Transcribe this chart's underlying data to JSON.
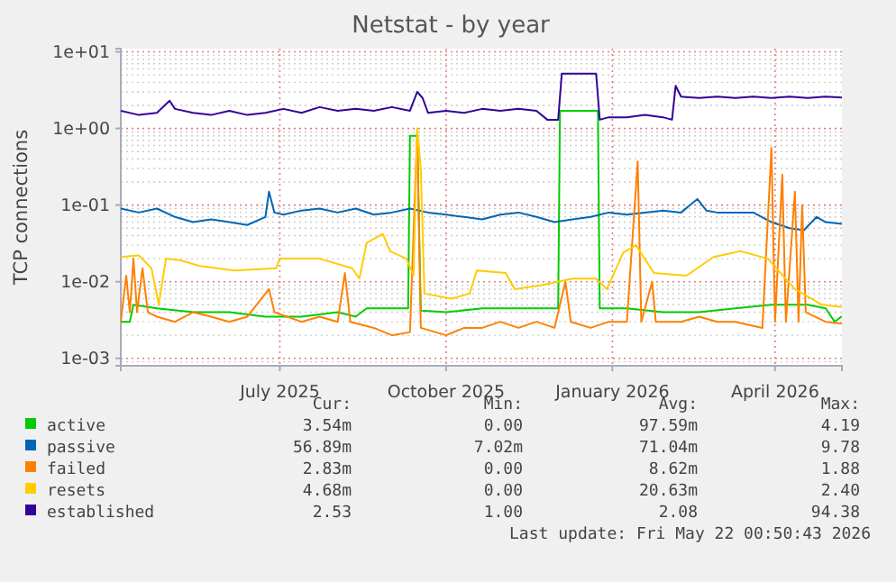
{
  "chart_data": {
    "type": "line",
    "title": "Netstat - by year",
    "ylabel": "TCP connections",
    "log": "y",
    "grid": true,
    "legend": "bottom",
    "marker": "none",
    "line_style": "solid",
    "xlim": [
      "2025-04-18",
      "2026-05-22"
    ],
    "xticks": [
      {
        "value": "2025-07-15",
        "label": "July 2025"
      },
      {
        "value": "2025-10-15",
        "label": "October 2025"
      },
      {
        "value": "2026-01-15",
        "label": "January 2026"
      },
      {
        "value": "2026-04-15",
        "label": "April 2026"
      }
    ],
    "ylim": [
      0.0008,
      11
    ],
    "yticks": [
      {
        "value": 0.001,
        "label": "1e-03"
      },
      {
        "value": 0.01,
        "label": "1e-02"
      },
      {
        "value": 0.1,
        "label": "1e-01"
      },
      {
        "value": 1,
        "label": "1e+00"
      },
      {
        "value": 10,
        "label": "1e+01"
      }
    ],
    "annotations": [
      "Cur:",
      "Min:",
      "Avg:",
      "Max:",
      "3.54m",
      "0.00",
      "97.59m",
      "4.19",
      "56.89m",
      "7.02m",
      "71.04m",
      "9.78",
      "2.83m",
      "0.00",
      "8.62m",
      "1.88",
      "4.68m",
      "0.00",
      "20.63m",
      "2.40",
      "2.53",
      "1.00",
      "2.08",
      "94.38",
      "Last update: Fri May 22 00:50:43 2026"
    ],
    "series": [
      {
        "name": "active",
        "color": "#00cc00",
        "x": [
          "2025-04-18",
          "2025-04-23",
          "2025-04-25",
          "2025-05-08",
          "2025-05-28",
          "2025-06-17",
          "2025-07-07",
          "2025-07-27",
          "2025-08-16",
          "2025-08-26",
          "2025-09-01",
          "2025-09-20",
          "2025-09-24",
          "2025-09-25",
          "2025-09-29",
          "2025-10-01",
          "2025-10-15",
          "2025-11-04",
          "2025-11-24",
          "2025-12-14",
          "2025-12-16",
          "2025-12-17",
          "2026-01-07",
          "2026-01-08",
          "2026-01-23",
          "2026-02-12",
          "2026-03-04",
          "2026-03-24",
          "2026-04-13",
          "2026-05-03",
          "2026-05-13",
          "2026-05-18",
          "2026-05-22"
        ],
        "values": [
          0.003,
          0.003,
          0.005,
          0.0045,
          0.004,
          0.004,
          0.0035,
          0.0035,
          0.004,
          0.0035,
          0.0045,
          0.0045,
          0.0045,
          0.8,
          0.8,
          0.0042,
          0.004,
          0.0045,
          0.0045,
          0.0045,
          0.0045,
          1.7,
          1.7,
          0.0045,
          0.0045,
          0.004,
          0.004,
          0.0045,
          0.005,
          0.005,
          0.0045,
          0.003,
          0.00354
        ]
      },
      {
        "name": "passive",
        "color": "#0066b3",
        "x": [
          "2025-04-18",
          "2025-04-28",
          "2025-05-08",
          "2025-05-18",
          "2025-05-28",
          "2025-06-07",
          "2025-06-17",
          "2025-06-27",
          "2025-07-07",
          "2025-07-09",
          "2025-07-12",
          "2025-07-17",
          "2025-07-27",
          "2025-08-06",
          "2025-08-16",
          "2025-08-26",
          "2025-09-05",
          "2025-09-15",
          "2025-09-25",
          "2025-10-05",
          "2025-10-15",
          "2025-10-25",
          "2025-11-04",
          "2025-11-14",
          "2025-11-24",
          "2025-12-04",
          "2025-12-14",
          "2025-12-24",
          "2026-01-03",
          "2026-01-13",
          "2026-01-23",
          "2026-02-02",
          "2026-02-12",
          "2026-02-22",
          "2026-03-03",
          "2026-03-08",
          "2026-03-14",
          "2026-03-24",
          "2026-04-03",
          "2026-04-13",
          "2026-04-23",
          "2026-05-01",
          "2026-05-08",
          "2026-05-13",
          "2026-05-22"
        ],
        "values": [
          0.09,
          0.08,
          0.09,
          0.07,
          0.06,
          0.065,
          0.06,
          0.055,
          0.07,
          0.15,
          0.08,
          0.075,
          0.085,
          0.09,
          0.08,
          0.09,
          0.075,
          0.08,
          0.09,
          0.08,
          0.075,
          0.07,
          0.065,
          0.075,
          0.08,
          0.07,
          0.06,
          0.065,
          0.07,
          0.08,
          0.075,
          0.08,
          0.085,
          0.08,
          0.12,
          0.085,
          0.08,
          0.08,
          0.08,
          0.06,
          0.05,
          0.047,
          0.07,
          0.06,
          0.057
        ]
      },
      {
        "name": "failed",
        "color": "#ff8000",
        "x": [
          "2025-04-18",
          "2025-04-21",
          "2025-04-23",
          "2025-04-25",
          "2025-04-27",
          "2025-04-30",
          "2025-05-03",
          "2025-05-08",
          "2025-05-18",
          "2025-05-28",
          "2025-06-07",
          "2025-06-17",
          "2025-06-27",
          "2025-07-09",
          "2025-07-12",
          "2025-07-27",
          "2025-08-06",
          "2025-08-16",
          "2025-08-20",
          "2025-08-23",
          "2025-09-05",
          "2025-09-15",
          "2025-09-25",
          "2025-09-29",
          "2025-10-01",
          "2025-10-15",
          "2025-10-25",
          "2025-11-04",
          "2025-11-14",
          "2025-11-24",
          "2025-12-04",
          "2025-12-14",
          "2025-12-20",
          "2025-12-23",
          "2026-01-03",
          "2026-01-13",
          "2026-01-23",
          "2026-01-29",
          "2026-01-31",
          "2026-02-06",
          "2026-02-08",
          "2026-02-22",
          "2026-03-04",
          "2026-03-14",
          "2026-03-24",
          "2026-04-08",
          "2026-04-13",
          "2026-04-15",
          "2026-04-19",
          "2026-04-21",
          "2026-04-26",
          "2026-04-28",
          "2026-04-30",
          "2026-05-02",
          "2026-05-13",
          "2026-05-22"
        ],
        "values": [
          0.003,
          0.012,
          0.004,
          0.02,
          0.004,
          0.015,
          0.004,
          0.0035,
          0.003,
          0.004,
          0.0035,
          0.003,
          0.0035,
          0.008,
          0.004,
          0.003,
          0.0035,
          0.003,
          0.013,
          0.003,
          0.0025,
          0.002,
          0.0022,
          0.9,
          0.0025,
          0.002,
          0.0025,
          0.0025,
          0.003,
          0.0025,
          0.003,
          0.0025,
          0.01,
          0.003,
          0.0025,
          0.003,
          0.003,
          0.37,
          0.003,
          0.01,
          0.003,
          0.003,
          0.0035,
          0.003,
          0.003,
          0.0025,
          0.56,
          0.003,
          0.25,
          0.003,
          0.15,
          0.003,
          0.1,
          0.004,
          0.003,
          0.00283
        ]
      },
      {
        "name": "resets",
        "color": "#ffcc00",
        "x": [
          "2025-04-18",
          "2025-04-28",
          "2025-05-05",
          "2025-05-09",
          "2025-05-13",
          "2025-05-21",
          "2025-06-01",
          "2025-06-20",
          "2025-07-13",
          "2025-07-15",
          "2025-08-06",
          "2025-08-24",
          "2025-08-28",
          "2025-09-01",
          "2025-09-10",
          "2025-09-14",
          "2025-09-23",
          "2025-09-27",
          "2025-09-29",
          "2025-10-01",
          "2025-10-03",
          "2025-10-18",
          "2025-10-28",
          "2025-11-01",
          "2025-11-17",
          "2025-11-22",
          "2025-12-07",
          "2025-12-24",
          "2026-01-06",
          "2026-01-12",
          "2026-01-21",
          "2026-01-28",
          "2026-02-07",
          "2026-02-25",
          "2026-03-12",
          "2026-03-27",
          "2026-04-11",
          "2026-04-26",
          "2026-05-11",
          "2026-05-22"
        ],
        "values": [
          0.021,
          0.022,
          0.015,
          0.005,
          0.02,
          0.019,
          0.016,
          0.014,
          0.015,
          0.02,
          0.02,
          0.015,
          0.011,
          0.032,
          0.042,
          0.025,
          0.02,
          0.012,
          1.0,
          0.3,
          0.007,
          0.006,
          0.007,
          0.014,
          0.013,
          0.008,
          0.009,
          0.011,
          0.011,
          0.008,
          0.024,
          0.03,
          0.013,
          0.012,
          0.021,
          0.025,
          0.02,
          0.008,
          0.005,
          0.00468
        ]
      },
      {
        "name": "established",
        "color": "#330099",
        "x": [
          "2025-04-18",
          "2025-04-28",
          "2025-05-08",
          "2025-05-15",
          "2025-05-18",
          "2025-05-28",
          "2025-06-07",
          "2025-06-17",
          "2025-06-27",
          "2025-07-07",
          "2025-07-17",
          "2025-07-27",
          "2025-08-06",
          "2025-08-16",
          "2025-08-26",
          "2025-09-05",
          "2025-09-15",
          "2025-09-25",
          "2025-09-29",
          "2025-10-02",
          "2025-10-05",
          "2025-10-15",
          "2025-10-25",
          "2025-11-04",
          "2025-11-14",
          "2025-11-24",
          "2025-12-04",
          "2025-12-10",
          "2025-12-16",
          "2025-12-18",
          "2026-01-06",
          "2026-01-08",
          "2026-01-13",
          "2026-01-23",
          "2026-02-02",
          "2026-02-12",
          "2026-02-17",
          "2026-02-19",
          "2026-02-22",
          "2026-03-04",
          "2026-03-14",
          "2026-03-24",
          "2026-04-03",
          "2026-04-13",
          "2026-04-23",
          "2026-05-03",
          "2026-05-13",
          "2026-05-22"
        ],
        "values": [
          1.7,
          1.5,
          1.6,
          2.3,
          1.8,
          1.6,
          1.5,
          1.7,
          1.5,
          1.6,
          1.8,
          1.6,
          1.9,
          1.7,
          1.8,
          1.7,
          1.9,
          1.7,
          3.0,
          2.5,
          1.6,
          1.7,
          1.6,
          1.8,
          1.7,
          1.8,
          1.7,
          1.3,
          1.3,
          5.2,
          5.2,
          1.3,
          1.4,
          1.4,
          1.5,
          1.4,
          1.3,
          3.6,
          2.6,
          2.5,
          2.6,
          2.5,
          2.6,
          2.5,
          2.6,
          2.5,
          2.6,
          2.53
        ]
      }
    ]
  }
}
